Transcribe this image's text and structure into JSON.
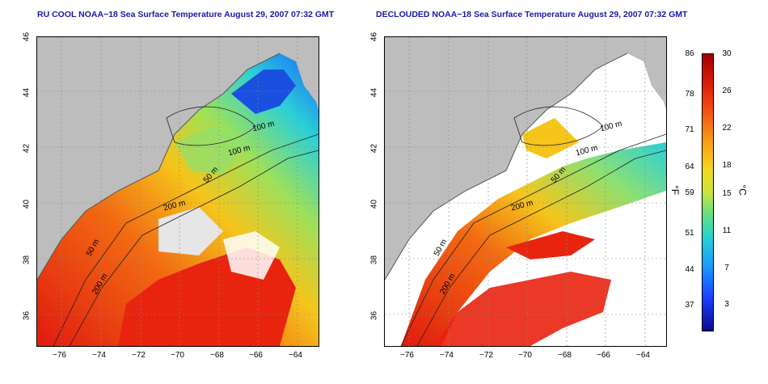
{
  "titles": {
    "left": "RU COOL NOAA−18 Sea Surface Temperature August 29, 2007 07:32 GMT",
    "right": "DECLOUDED NOAA−18 Sea Surface Temperature August 29, 2007 07:32 GMT"
  },
  "axes": {
    "lat_ticks": [
      "46",
      "44",
      "42",
      "40",
      "38",
      "36"
    ],
    "lon_ticks": [
      "−76",
      "−74",
      "−72",
      "−70",
      "−68",
      "−66",
      "−64"
    ]
  },
  "contours": {
    "c100a": "100 m",
    "c100b": "100 m",
    "c50": "50 m",
    "c200": "200 m",
    "c50s": "50 m",
    "c200s": "200 m"
  },
  "colorbar": {
    "unit_f": "°F",
    "unit_c": "°C",
    "f_ticks": [
      "86",
      "78",
      "71",
      "64",
      "59",
      "51",
      "44",
      "37"
    ],
    "c_ticks": [
      "30",
      "26",
      "22",
      "18",
      "15",
      "11",
      "7",
      "3"
    ]
  },
  "colors": {
    "land": "#bdbdbd",
    "title": "#1a1aa6"
  }
}
